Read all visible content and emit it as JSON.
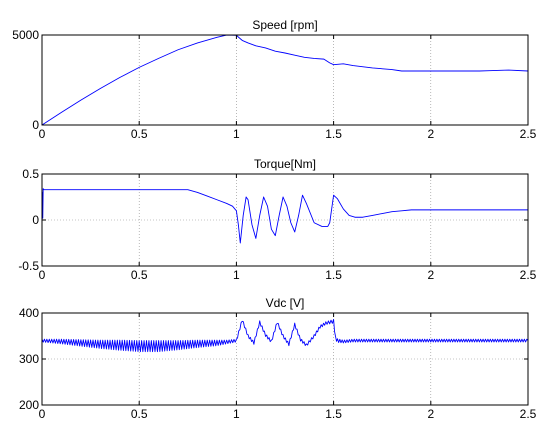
{
  "chart_data": [
    {
      "type": "line",
      "title": "Speed [rpm]",
      "xlim": [
        0,
        2.5
      ],
      "ylim": [
        0,
        5000
      ],
      "xticks": [
        0,
        0.5,
        1,
        1.5,
        2,
        2.5
      ],
      "xtick_labels": [
        "0",
        "0.5",
        "1",
        "1.5",
        "2",
        "2.5"
      ],
      "yticks": [
        0,
        5000
      ],
      "ytick_labels": [
        "0",
        "5000"
      ],
      "grid": true,
      "color": "#0000ff",
      "series": [
        {
          "x": [
            0,
            0.1,
            0.2,
            0.3,
            0.4,
            0.5,
            0.6,
            0.7,
            0.8,
            0.9,
            0.95,
            1.0,
            1.03,
            1.06,
            1.1,
            1.15,
            1.2,
            1.25,
            1.3,
            1.35,
            1.4,
            1.45,
            1.48,
            1.5,
            1.55,
            1.6,
            1.7,
            1.8,
            1.85,
            1.9,
            2.0,
            2.1,
            2.2,
            2.25,
            2.3,
            2.4,
            2.5
          ],
          "y": [
            0,
            700,
            1380,
            2030,
            2640,
            3200,
            3700,
            4180,
            4560,
            4870,
            5000,
            4980,
            4700,
            4560,
            4400,
            4280,
            4100,
            4000,
            3880,
            3760,
            3700,
            3660,
            3450,
            3350,
            3400,
            3300,
            3170,
            3080,
            3000,
            3000,
            3000,
            3000,
            3000,
            3000,
            3020,
            3050,
            3000
          ]
        }
      ]
    },
    {
      "type": "line",
      "title": "Torque[Nm]",
      "xlim": [
        0,
        2.5
      ],
      "ylim": [
        -0.5,
        0.5
      ],
      "xticks": [
        0,
        0.5,
        1,
        1.5,
        2,
        2.5
      ],
      "xtick_labels": [
        "0",
        "0.5",
        "1",
        "1.5",
        "2",
        "2.5"
      ],
      "yticks": [
        -0.5,
        0,
        0.5
      ],
      "ytick_labels": [
        "-0.5",
        "0",
        "0.5"
      ],
      "grid": true,
      "color": "#0000ff",
      "series": [
        {
          "x": [
            0,
            0.002,
            0.004,
            0.006,
            0.01,
            0.5,
            0.75,
            0.8,
            0.85,
            0.9,
            0.95,
            0.98,
            1.0,
            1.01,
            1.02,
            1.035,
            1.05,
            1.06,
            1.08,
            1.1,
            1.12,
            1.14,
            1.16,
            1.18,
            1.2,
            1.22,
            1.24,
            1.26,
            1.28,
            1.3,
            1.32,
            1.34,
            1.36,
            1.4,
            1.44,
            1.47,
            1.48,
            1.5,
            1.52,
            1.55,
            1.58,
            1.61,
            1.65,
            1.7,
            1.75,
            1.8,
            1.85,
            1.9,
            2.0,
            2.1,
            2.2,
            2.3,
            2.4,
            2.5
          ],
          "y": [
            0,
            0.3,
            0.02,
            0.34,
            0.33,
            0.33,
            0.33,
            0.3,
            0.26,
            0.22,
            0.18,
            0.15,
            0.1,
            -0.05,
            -0.25,
            0.05,
            0.25,
            0.22,
            -0.05,
            -0.2,
            0.05,
            0.25,
            0.15,
            -0.1,
            -0.17,
            0.05,
            0.25,
            0.15,
            -0.03,
            -0.13,
            0.05,
            0.27,
            0.18,
            -0.03,
            -0.07,
            -0.07,
            -0.03,
            0.27,
            0.23,
            0.12,
            0.05,
            0.03,
            0.03,
            0.05,
            0.07,
            0.09,
            0.1,
            0.11,
            0.11,
            0.11,
            0.11,
            0.11,
            0.11,
            0.11
          ]
        }
      ]
    },
    {
      "type": "line",
      "title": "Vdc [V]",
      "xlim": [
        0,
        2.5
      ],
      "ylim": [
        200,
        400
      ],
      "xticks": [
        0,
        0.5,
        1,
        1.5,
        2,
        2.5
      ],
      "xtick_labels": [
        "0",
        "0.5",
        "1",
        "1.5",
        "2",
        "2.5"
      ],
      "yticks": [
        200,
        300,
        400
      ],
      "ytick_labels": [
        "200",
        "300",
        "400"
      ],
      "grid": true,
      "color": "#0000ff",
      "series": [
        {
          "x": [
            0,
            0.1,
            0.2,
            0.3,
            0.4,
            0.5,
            0.6,
            0.7,
            0.8,
            0.9,
            0.95,
            1.0,
            1.03,
            1.06,
            1.09,
            1.12,
            1.15,
            1.18,
            1.21,
            1.24,
            1.27,
            1.3,
            1.33,
            1.36,
            1.4,
            1.43,
            1.46,
            1.5,
            1.51,
            1.52,
            1.55,
            1.6,
            1.8,
            2.0,
            2.2,
            2.4,
            2.5
          ],
          "y": [
            340,
            338,
            335,
            332,
            330,
            328,
            328,
            330,
            333,
            335,
            337,
            340,
            385,
            350,
            335,
            380,
            352,
            338,
            380,
            350,
            332,
            375,
            342,
            330,
            350,
            370,
            378,
            382,
            345,
            340,
            338,
            340,
            340,
            340,
            340,
            340,
            340
          ],
          "ripple": [
            3,
            5,
            7,
            9,
            11,
            12,
            12,
            10,
            8,
            6,
            4,
            3,
            3,
            3,
            3,
            3,
            3,
            3,
            3,
            3,
            3,
            3,
            3,
            3,
            3,
            3,
            3,
            4,
            4,
            4,
            3,
            3,
            3,
            3,
            3,
            3,
            3
          ]
        }
      ]
    }
  ]
}
